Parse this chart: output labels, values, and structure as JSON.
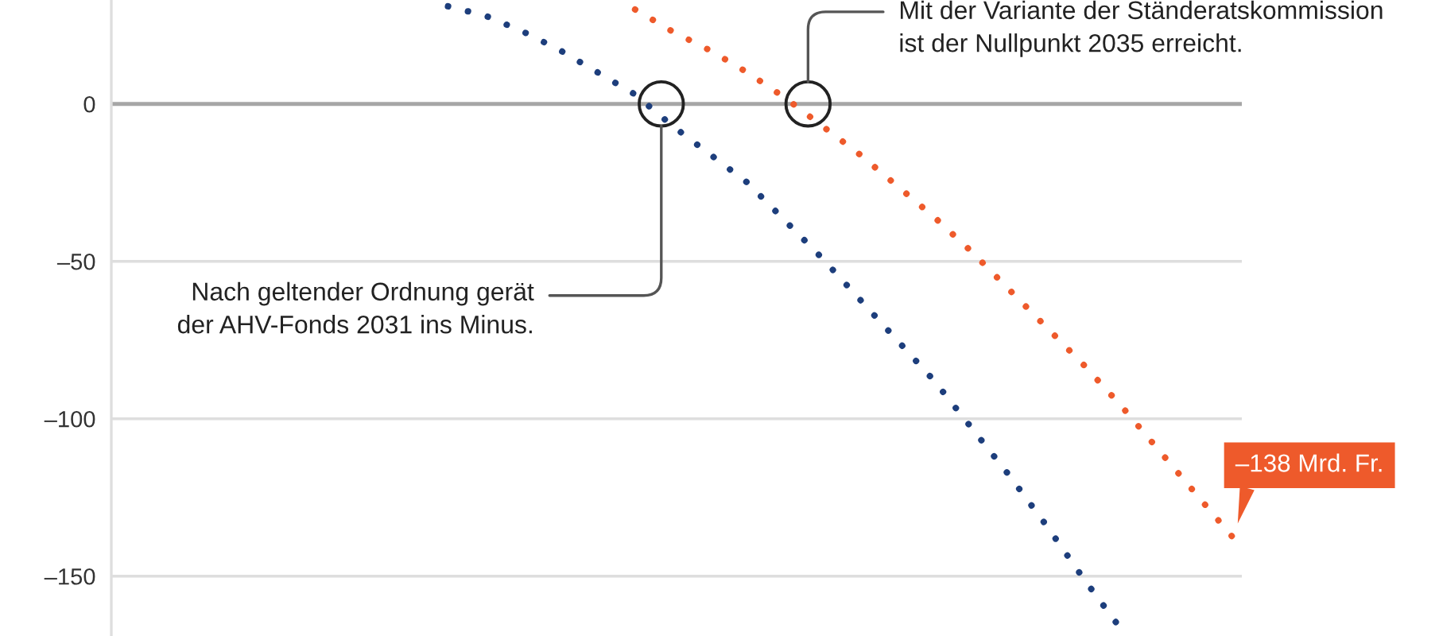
{
  "chart_data": {
    "type": "line",
    "categories": [
      null,
      null,
      null,
      null,
      null,
      null,
      null,
      null,
      null,
      null,
      null,
      null,
      null,
      null,
      null,
      null,
      null,
      null,
      null,
      null,
      null,
      null,
      null,
      null,
      null,
      null,
      null,
      null,
      null,
      null,
      null
    ],
    "series": [
      {
        "color": "#1d3e7c",
        "values": [
          null,
          null,
          null,
          null,
          null,
          null,
          null,
          null,
          null,
          31,
          28,
          23,
          17,
          10,
          3,
          -7,
          -16,
          -25,
          -37,
          -49,
          -62,
          -75,
          -88,
          -103,
          -118,
          -134,
          -151,
          -167,
          null,
          null,
          null
        ]
      },
      {
        "color": "#ee5a2b",
        "values": [
          null,
          null,
          null,
          null,
          null,
          null,
          null,
          null,
          null,
          null,
          null,
          null,
          null,
          null,
          30,
          23,
          17,
          10,
          2,
          -7,
          -16,
          -26,
          -36,
          -47,
          -59,
          -71,
          -83,
          -96,
          -110,
          -124,
          -138
        ],
        "value_labels": [
          null,
          null,
          null,
          null,
          null,
          null,
          null,
          null,
          null,
          null,
          null,
          null,
          null,
          null,
          null,
          null,
          null,
          null,
          null,
          null,
          null,
          null,
          null,
          null,
          null,
          null,
          null,
          null,
          null,
          null,
          "–138 Mrd. Fr."
        ]
      }
    ],
    "ylim": [
      -169,
      33
    ],
    "yticks": [
      0,
      {
        "value": -50,
        "label": "–50"
      },
      {
        "value": -100,
        "label": "–100"
      },
      {
        "value": -150,
        "label": "–150"
      }
    ],
    "grid": "y",
    "tick_labels": "y",
    "line_style": "dotted",
    "ref_lines": [
      {
        "axis": "y",
        "value": 0,
        "color": "#a6a6a6"
      }
    ],
    "annotations": [
      "Nach geltender Ordnung gerät\nder AHV-Fonds 2031 ins Minus.",
      {
        "text": "Mit der Variante der Ständeratskommission\nist der Nullpunkt 2035 erreicht.",
        "y": 0
      }
    ]
  }
}
